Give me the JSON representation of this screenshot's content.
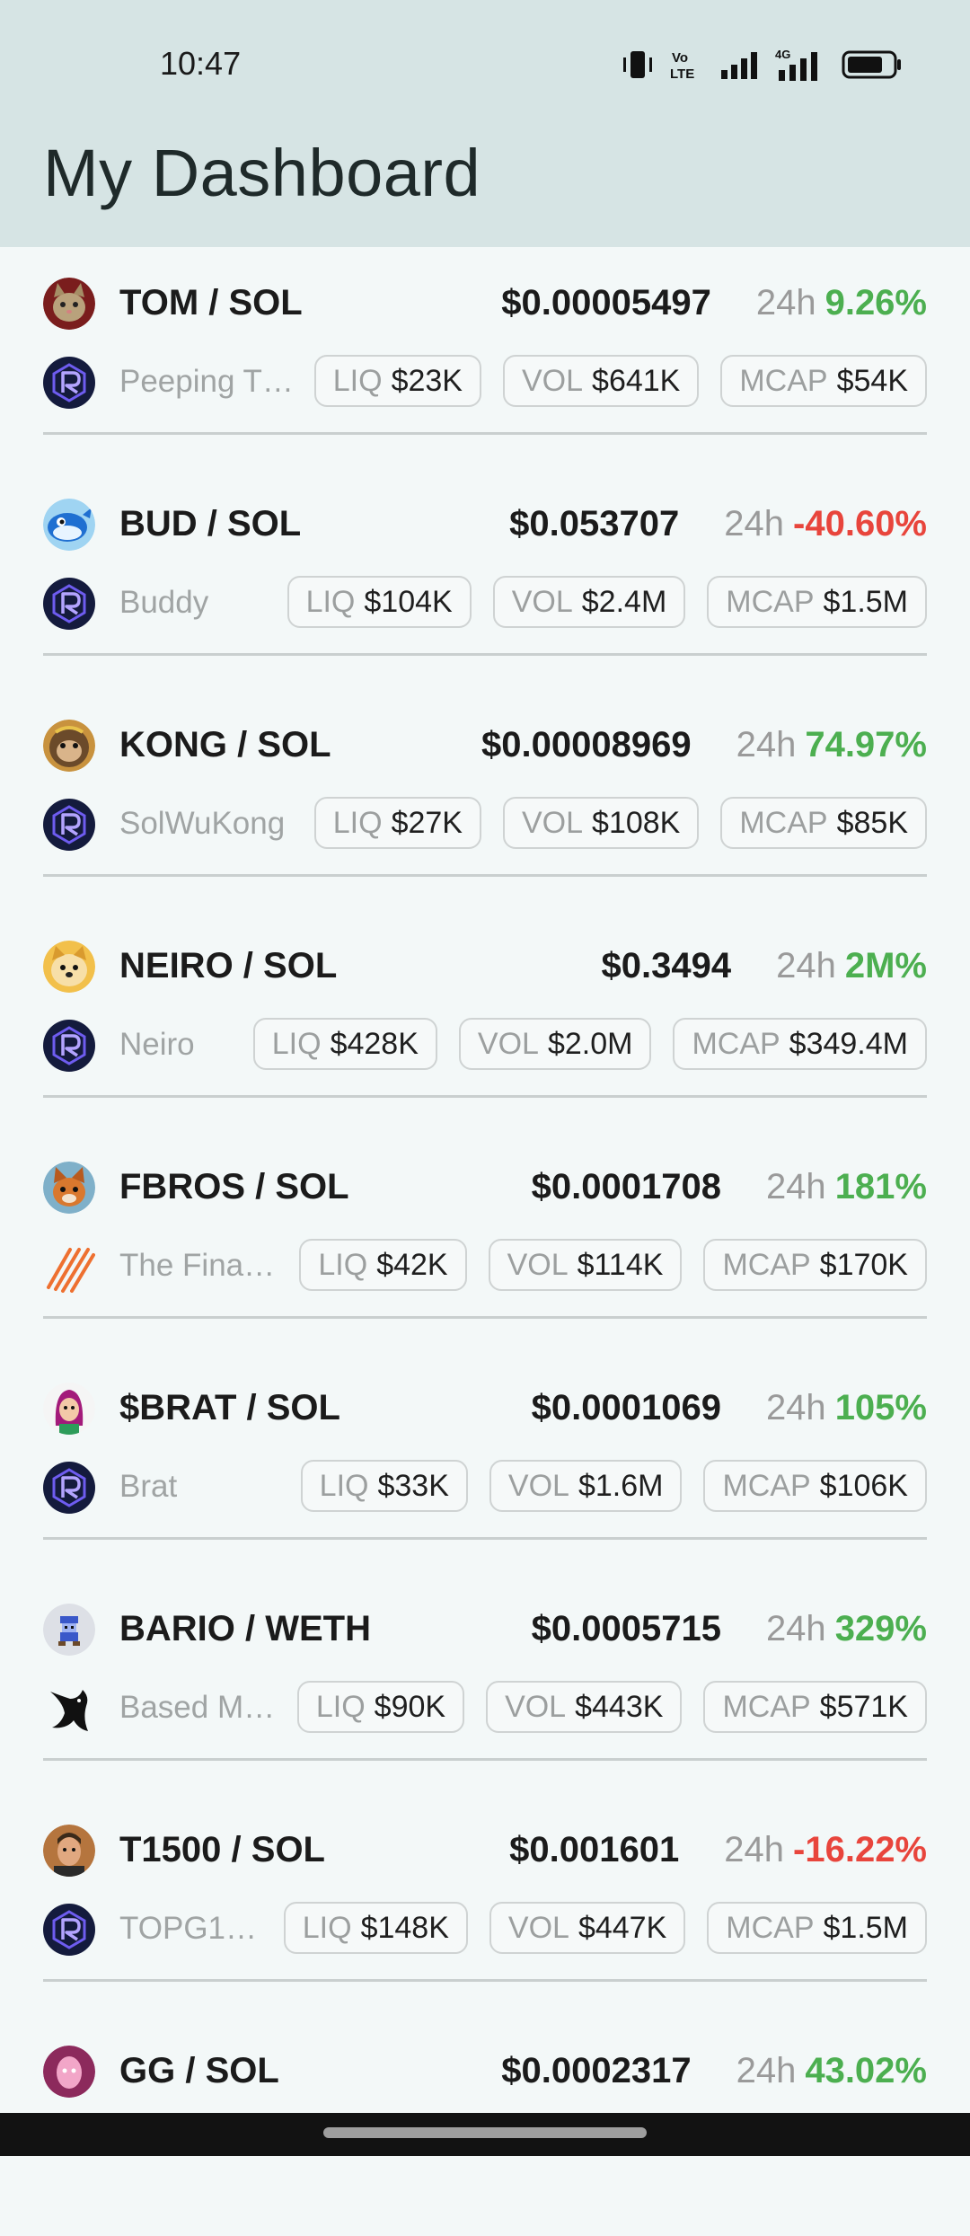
{
  "status": {
    "time": "10:47",
    "icons": [
      "vibrate-icon",
      "volte-icon",
      "signal-icon",
      "4g-signal-icon",
      "battery-icon"
    ],
    "volte_label": "Vo LTE",
    "net_label": "4G"
  },
  "header": {
    "title": "My Dashboard"
  },
  "labels": {
    "h24": "24h",
    "liq": "LIQ",
    "vol": "VOL",
    "mcap": "MCAP"
  },
  "colors": {
    "up": "#4caf50",
    "down": "#e8453c",
    "header_bg": "#d6e4e4"
  },
  "tokens": [
    {
      "pair": "TOM / SOL",
      "price": "$0.00005497",
      "change": "9.26%",
      "direction": "up",
      "name": "Peeping T…",
      "liq": "$23K",
      "vol": "$641K",
      "mcap": "$54K",
      "avatar": "cat-avatar",
      "dex": "raydium"
    },
    {
      "pair": "BUD / SOL",
      "price": "$0.053707",
      "change": "-40.60%",
      "direction": "down",
      "name": "Buddy",
      "liq": "$104K",
      "vol": "$2.4M",
      "mcap": "$1.5M",
      "avatar": "whale-avatar",
      "dex": "raydium"
    },
    {
      "pair": "KONG / SOL",
      "price": "$0.00008969",
      "change": "74.97%",
      "direction": "up",
      "name": "SolWuKong",
      "liq": "$27K",
      "vol": "$108K",
      "mcap": "$85K",
      "avatar": "monkey-avatar",
      "dex": "raydium"
    },
    {
      "pair": "NEIRO / SOL",
      "price": "$0.3494",
      "change": "2M%",
      "direction": "up",
      "name": "Neiro",
      "liq": "$428K",
      "vol": "$2.0M",
      "mcap": "$349.4M",
      "avatar": "dog-avatar",
      "dex": "raydium"
    },
    {
      "pair": "FBROS / SOL",
      "price": "$0.0001708",
      "change": "181%",
      "direction": "up",
      "name": "The Fina…",
      "liq": "$42K",
      "vol": "$114K",
      "mcap": "$170K",
      "avatar": "fox-avatar",
      "dex": "stripes"
    },
    {
      "pair": "$BRAT / SOL",
      "price": "$0.0001069",
      "change": "105%",
      "direction": "up",
      "name": "Brat",
      "liq": "$33K",
      "vol": "$1.6M",
      "mcap": "$106K",
      "avatar": "girl-avatar",
      "dex": "raydium"
    },
    {
      "pair": "BARIO / WETH",
      "price": "$0.0005715",
      "change": "329%",
      "direction": "up",
      "name": "Based M…",
      "liq": "$90K",
      "vol": "$443K",
      "mcap": "$571K",
      "avatar": "pixel-avatar",
      "dex": "uniswap"
    },
    {
      "pair": "T1500 / SOL",
      "price": "$0.001601",
      "change": "-16.22%",
      "direction": "down",
      "name": "TOPG1…",
      "liq": "$148K",
      "vol": "$447K",
      "mcap": "$1.5M",
      "avatar": "man-avatar",
      "dex": "raydium"
    },
    {
      "pair": "GG / SOL",
      "price": "$0.0002317",
      "change": "43.02%",
      "direction": "up",
      "name": "",
      "liq": "",
      "vol": "",
      "mcap": "",
      "avatar": "pink-avatar",
      "dex": "raydium"
    }
  ]
}
